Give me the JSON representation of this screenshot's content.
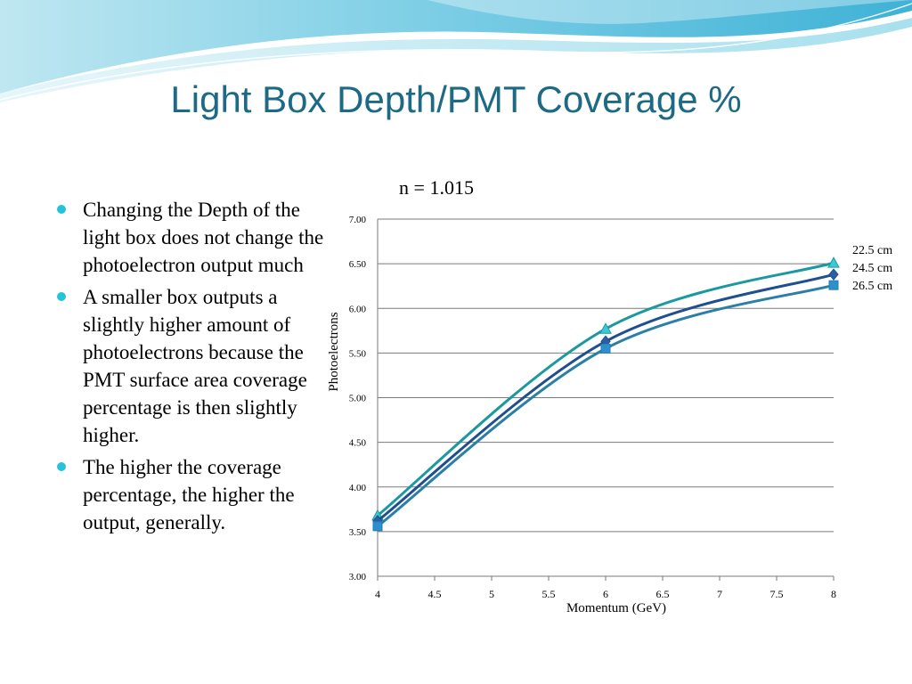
{
  "slide": {
    "title": "Light Box Depth/PMT Coverage %",
    "bullet_color": "#25c3d9",
    "bullets": [
      "Changing the Depth of the light box does not change the photoelectron output much",
      "A smaller box outputs a slightly higher amount of photoelectrons because the PMT surface area coverage percentage is then slightly higher.",
      "The higher the coverage percentage, the higher the output, generally."
    ]
  },
  "chart_data": {
    "type": "line",
    "title": "n = 1.015",
    "xlabel": "Momentum (GeV)",
    "ylabel": "Photoelectrons",
    "xlim": [
      4,
      8
    ],
    "ylim": [
      3,
      7
    ],
    "x_ticks": [
      "4",
      "4.5",
      "5",
      "5.5",
      "6",
      "6.5",
      "7",
      "7.5",
      "8"
    ],
    "y_ticks": [
      "3.00",
      "3.50",
      "4.00",
      "4.50",
      "5.00",
      "5.50",
      "6.00",
      "6.50",
      "7.00"
    ],
    "grid": "horizontal",
    "legend_position": "right",
    "x": [
      4,
      6,
      8
    ],
    "series": [
      {
        "name": "22.5 cm",
        "values": [
          3.68,
          5.77,
          6.51
        ],
        "color": "#1a9aa0",
        "marker": "triangle"
      },
      {
        "name": "24.5 cm",
        "values": [
          3.62,
          5.63,
          6.38
        ],
        "color": "#1f4f8f",
        "marker": "diamond"
      },
      {
        "name": "26.5 cm",
        "values": [
          3.56,
          5.55,
          6.26
        ],
        "color": "#2a7fa8",
        "marker": "square"
      }
    ]
  }
}
